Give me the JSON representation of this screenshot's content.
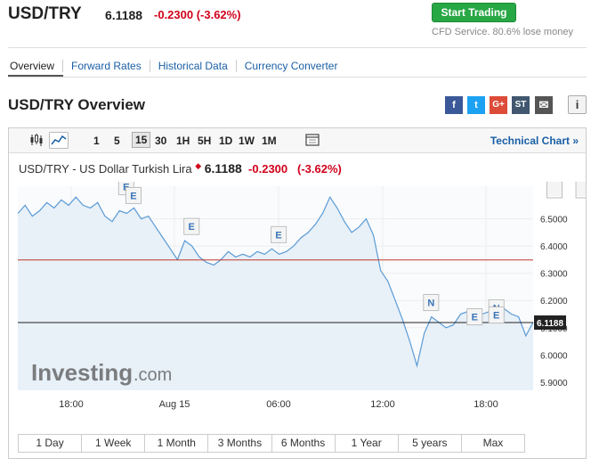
{
  "header": {
    "pair": "USD/TRY",
    "price": "6.1188",
    "change": "-0.2300 (-3.62%)",
    "trade_button": "Start Trading",
    "cfd_notice": "CFD Service. 80.6% lose money"
  },
  "nav": {
    "tabs": [
      "Overview",
      "Forward Rates",
      "Historical Data",
      "Currency Converter"
    ]
  },
  "overview": {
    "title": "USD/TRY Overview",
    "share": [
      {
        "icon": "facebook-icon",
        "glyph": "f",
        "color": "#3b5998"
      },
      {
        "icon": "twitter-icon",
        "glyph": "t",
        "color": "#1da1f2"
      },
      {
        "icon": "google-plus-icon",
        "glyph": "G+",
        "color": "#dd4b39"
      },
      {
        "icon": "stocktwits-icon",
        "glyph": "ST",
        "color": "#40576f"
      },
      {
        "icon": "email-icon",
        "glyph": "✉",
        "color": "#555555"
      }
    ],
    "info_glyph": "i"
  },
  "toolbar": {
    "intervals": [
      "1",
      "5",
      "15",
      "30",
      "1H",
      "5H",
      "1D",
      "1W",
      "1M"
    ],
    "selected_interval": "15",
    "tech_link": "Technical Chart »"
  },
  "legend": {
    "name": "USD/TRY - US Dollar Turkish Lira",
    "price": "6.1188",
    "change": "-0.2300",
    "percent": "(-3.62%)"
  },
  "chart_data": {
    "type": "area",
    "title": "USD/TRY - US Dollar Turkish Lira",
    "ylim": [
      5.87,
      6.62
    ],
    "y_ticks": [
      "6.5000",
      "6.4000",
      "6.3000",
      "6.2000",
      "6.1000",
      "6.0000",
      "5.9000"
    ],
    "x_ticks": [
      "18:00",
      "Aug 15",
      "06:00",
      "12:00",
      "18:00"
    ],
    "current_value": 6.1188,
    "current_label": "6.1188",
    "reference_line": 6.349,
    "values": [
      6.52,
      6.55,
      6.51,
      6.53,
      6.56,
      6.54,
      6.57,
      6.55,
      6.58,
      6.55,
      6.54,
      6.56,
      6.51,
      6.49,
      6.53,
      6.52,
      6.54,
      6.5,
      6.51,
      6.47,
      6.43,
      6.39,
      6.35,
      6.42,
      6.4,
      6.36,
      6.34,
      6.33,
      6.35,
      6.38,
      6.36,
      6.37,
      6.36,
      6.38,
      6.37,
      6.39,
      6.37,
      6.38,
      6.4,
      6.43,
      6.45,
      6.48,
      6.52,
      6.58,
      6.54,
      6.49,
      6.45,
      6.47,
      6.5,
      6.44,
      6.31,
      6.27,
      6.2,
      6.13,
      6.05,
      5.96,
      6.08,
      6.14,
      6.12,
      6.1,
      6.11,
      6.15,
      6.16,
      6.14,
      6.15,
      6.16,
      6.14,
      6.17,
      6.15,
      6.14,
      6.07,
      6.12
    ],
    "markers": [
      {
        "label": "E",
        "index": 8
      },
      {
        "label": "E",
        "index": 15
      },
      {
        "label": "E",
        "index": 16
      },
      {
        "label": "E",
        "index": 24
      },
      {
        "label": "E",
        "index": 36
      },
      {
        "label": "N",
        "index": 57
      },
      {
        "label": "E",
        "index": 63
      },
      {
        "label": "N",
        "index": 66
      },
      {
        "label": "E",
        "index": 66
      },
      {
        "label": "E",
        "index": 74
      },
      {
        "label": "E",
        "index": 78
      }
    ],
    "line_color": "#5b9bd5",
    "fill_color": "#e8f0f8",
    "watermark": "Investing.com"
  },
  "ranges": [
    "1 Day",
    "1 Week",
    "1 Month",
    "3 Months",
    "6 Months",
    "1 Year",
    "5 years",
    "Max"
  ]
}
